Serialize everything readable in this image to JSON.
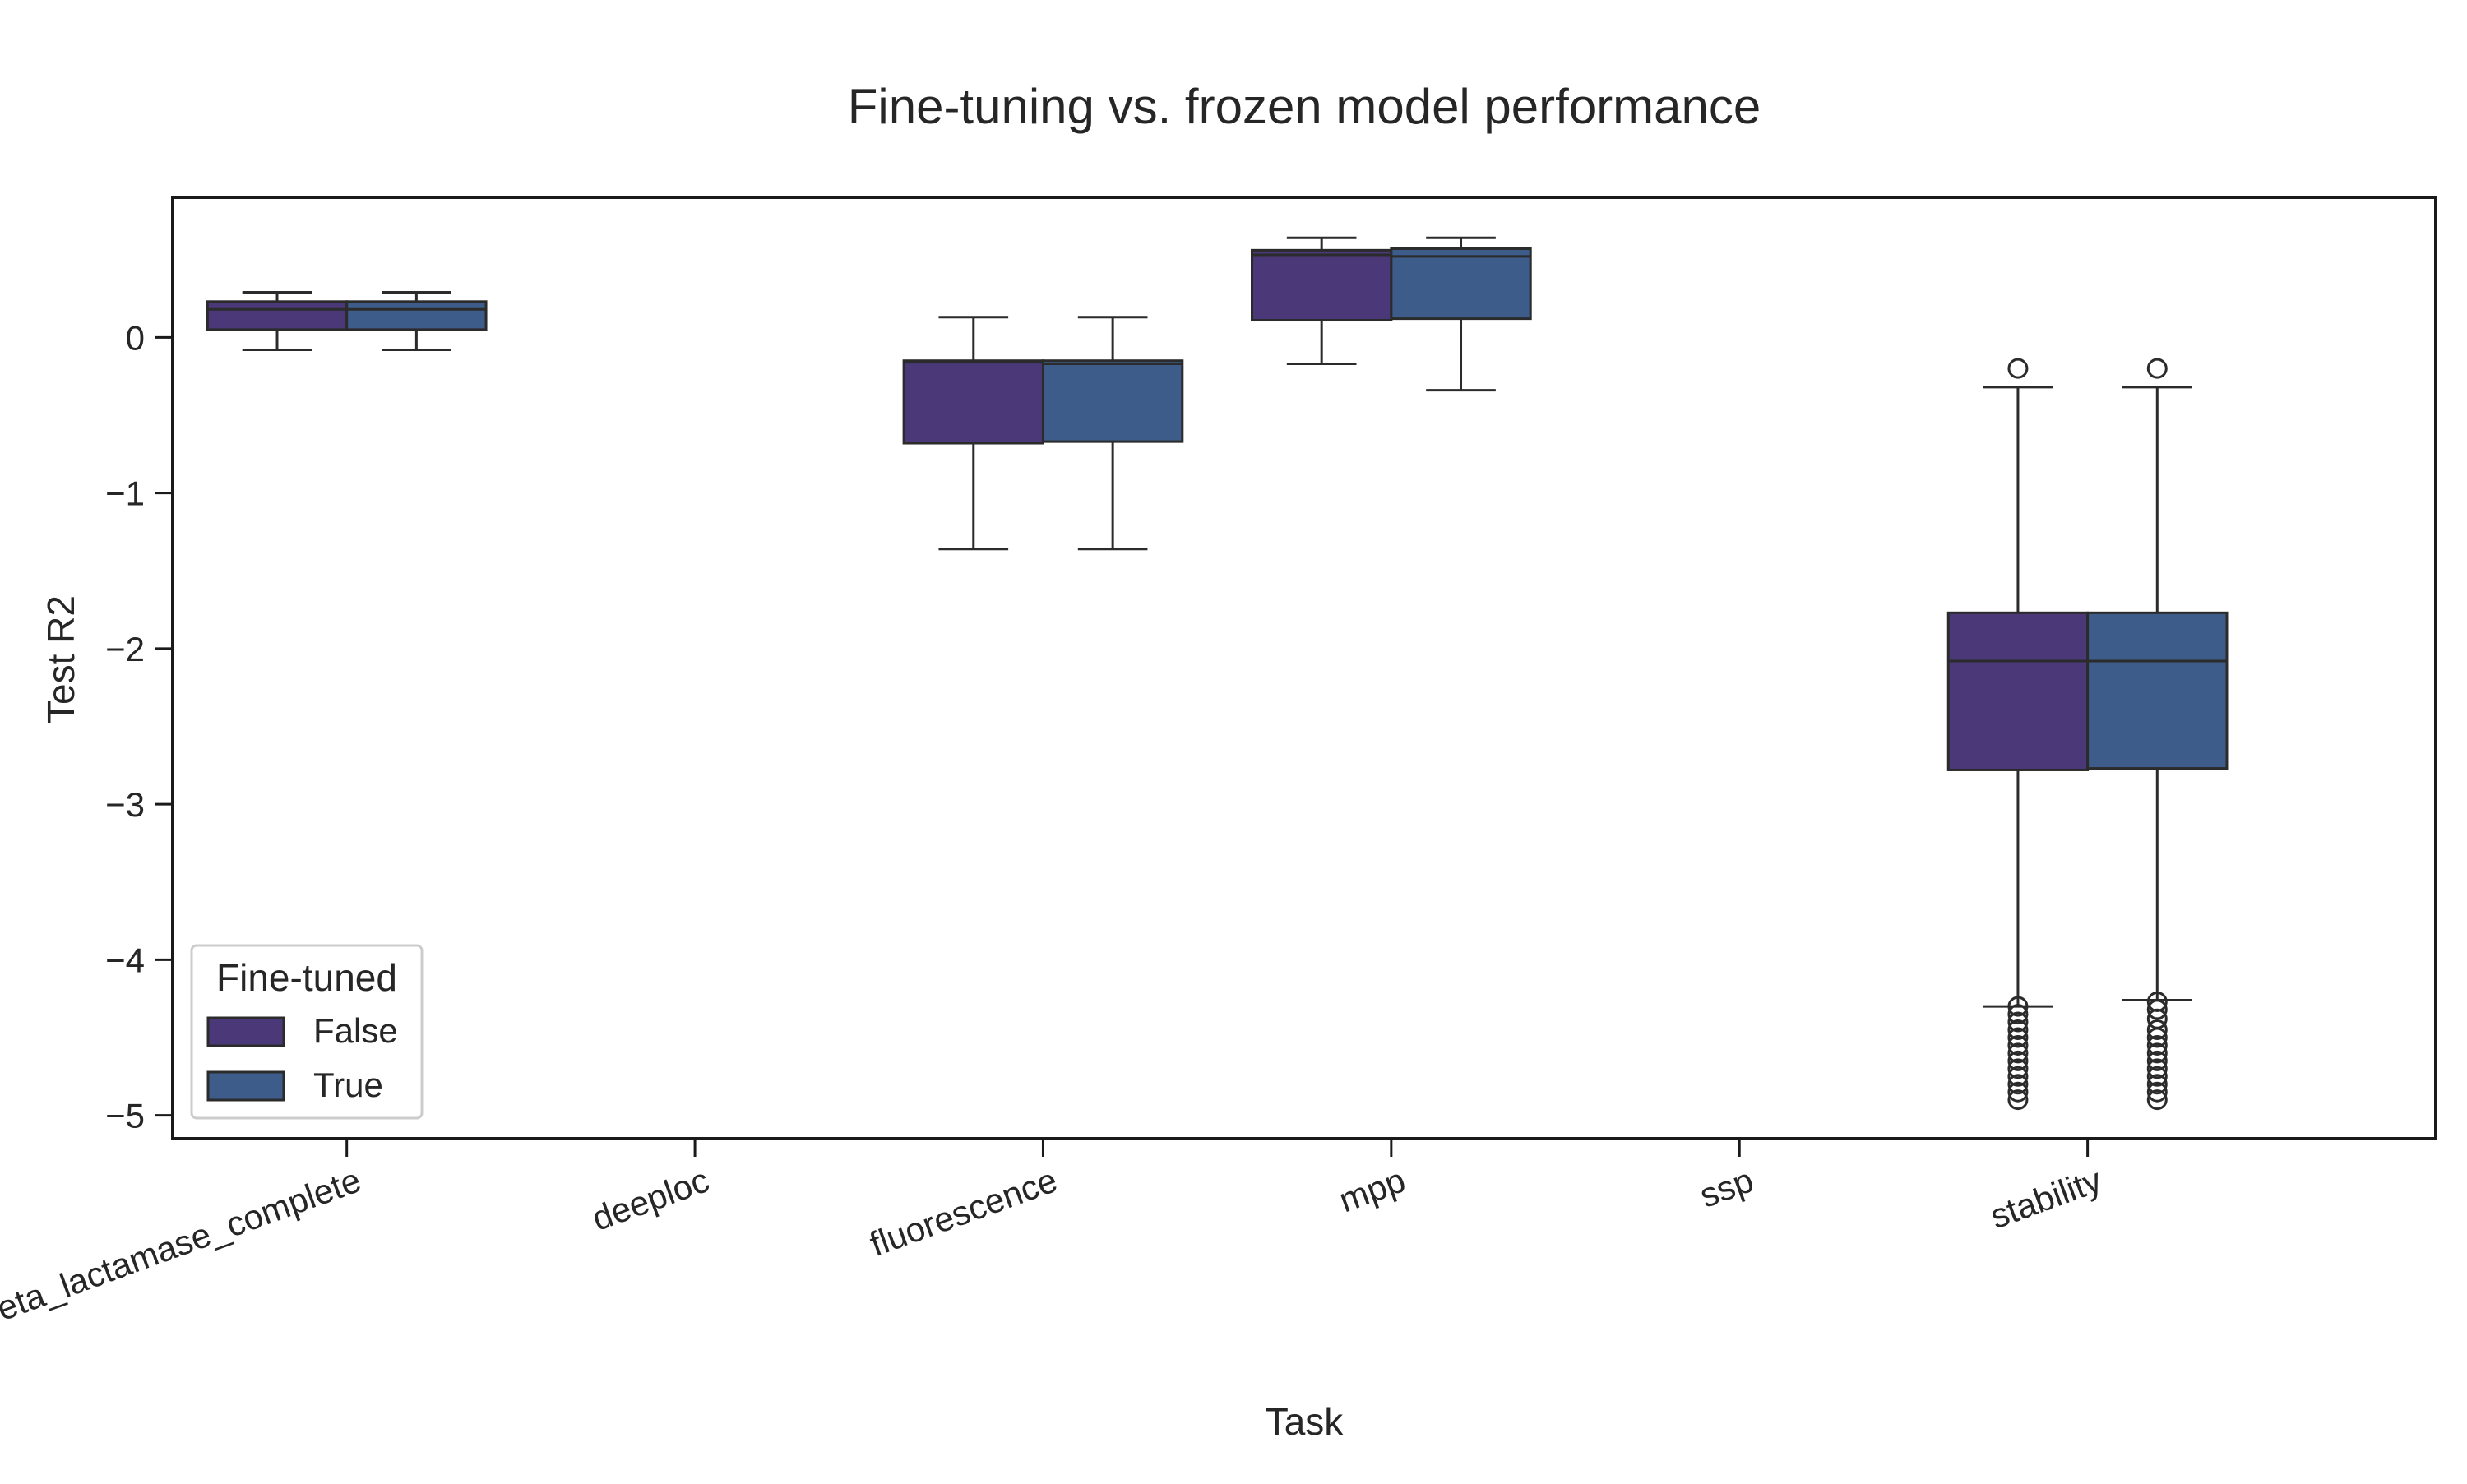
{
  "chart_data": {
    "type": "box",
    "title": "Fine-tuning vs. frozen model performance",
    "xlabel": "Task",
    "ylabel": "Test R2",
    "categories": [
      "beta_lactamase_complete",
      "deeploc",
      "fluorescence",
      "mpp",
      "ssp",
      "stability"
    ],
    "yticks": [
      0,
      -1,
      -2,
      -3,
      -4,
      -5
    ],
    "ytick_labels": [
      "0",
      "−1",
      "−2",
      "−3",
      "−4",
      "−5"
    ],
    "ylim": [
      -5.15,
      0.9
    ],
    "grid": false,
    "legend": {
      "title": "Fine-tuned",
      "placement": "lower-left",
      "entries": [
        "False",
        "True"
      ]
    },
    "colors": {
      "False": "#4b3878",
      "True": "#3d5c8a",
      "edge": "#2b2b2b",
      "spine": "#1a1a1a"
    },
    "series": [
      {
        "name": "False",
        "boxes": [
          {
            "category": "beta_lactamase_complete",
            "whislo": -0.08,
            "q1": 0.05,
            "med": 0.18,
            "q3": 0.23,
            "whishi": 0.29,
            "fliers": []
          },
          {
            "category": "fluorescence",
            "whislo": -1.36,
            "q1": -0.68,
            "med": -0.16,
            "q3": -0.15,
            "whishi": 0.13,
            "fliers": []
          },
          {
            "category": "mpp",
            "whislo": -0.17,
            "q1": 0.11,
            "med": 0.53,
            "q3": 0.56,
            "whishi": 0.64,
            "fliers": []
          },
          {
            "category": "stability",
            "whislo": -4.3,
            "q1": -2.78,
            "med": -2.08,
            "q3": -1.77,
            "whishi": -0.32,
            "fliers": [
              -0.2,
              -4.3,
              -4.35,
              -4.4,
              -4.45,
              -4.5,
              -4.55,
              -4.6,
              -4.65,
              -4.7,
              -4.75,
              -4.8,
              -4.85,
              -4.9
            ]
          }
        ]
      },
      {
        "name": "True",
        "boxes": [
          {
            "category": "beta_lactamase_complete",
            "whislo": -0.08,
            "q1": 0.05,
            "med": 0.18,
            "q3": 0.23,
            "whishi": 0.29,
            "fliers": []
          },
          {
            "category": "fluorescence",
            "whislo": -1.36,
            "q1": -0.67,
            "med": -0.17,
            "q3": -0.15,
            "whishi": 0.13,
            "fliers": []
          },
          {
            "category": "mpp",
            "whislo": -0.34,
            "q1": 0.12,
            "med": 0.52,
            "q3": 0.57,
            "whishi": 0.64,
            "fliers": []
          },
          {
            "category": "stability",
            "whislo": -4.26,
            "q1": -2.77,
            "med": -2.08,
            "q3": -1.77,
            "whishi": -0.32,
            "fliers": [
              -0.2,
              -4.27,
              -4.32,
              -4.38,
              -4.45,
              -4.5,
              -4.55,
              -4.6,
              -4.65,
              -4.7,
              -4.75,
              -4.8,
              -4.85,
              -4.9
            ]
          }
        ]
      }
    ]
  }
}
